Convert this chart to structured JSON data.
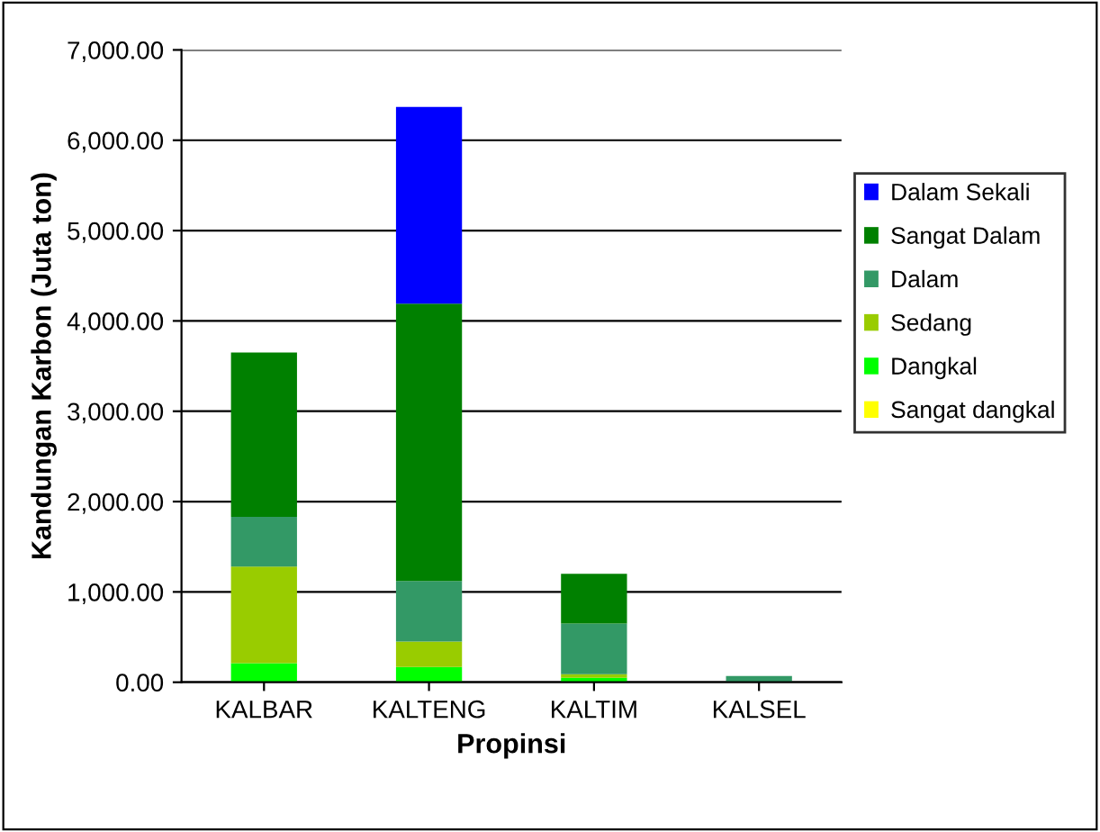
{
  "chart_data": {
    "type": "bar",
    "stacked": true,
    "xlabel": "Propinsi",
    "ylabel": "Kandungan Karbon (Juta ton)",
    "categories": [
      "KALBAR",
      "KALTENG",
      "KALTIM",
      "KALSEL"
    ],
    "series": [
      {
        "name": "Sangat dangkal",
        "color": "#ffff00",
        "values": [
          0,
          0,
          0,
          0
        ]
      },
      {
        "name": "Dangkal",
        "color": "#00ff00",
        "values": [
          210,
          170,
          50,
          0
        ]
      },
      {
        "name": "Sedang",
        "color": "#99cc00",
        "values": [
          1070,
          280,
          40,
          0
        ]
      },
      {
        "name": "Dalam",
        "color": "#339966",
        "values": [
          550,
          670,
          560,
          70
        ]
      },
      {
        "name": "Sangat Dalam",
        "color": "#008000",
        "values": [
          1820,
          3070,
          550,
          0
        ]
      },
      {
        "name": "Dalam Sekali",
        "color": "#0000ff",
        "values": [
          0,
          2180,
          0,
          0
        ]
      }
    ],
    "ylim": [
      0,
      7000
    ],
    "yticks": [
      {
        "value": 0,
        "label": "0.00"
      },
      {
        "value": 1000,
        "label": "1,000.00"
      },
      {
        "value": 2000,
        "label": "2,000.00"
      },
      {
        "value": 3000,
        "label": "3,000.00"
      },
      {
        "value": 4000,
        "label": "4,000.00"
      },
      {
        "value": 5000,
        "label": "5,000.00"
      },
      {
        "value": 6000,
        "label": "6,000.00"
      },
      {
        "value": 7000,
        "label": "7,000.00"
      }
    ],
    "grid": "y",
    "legend": "right"
  }
}
